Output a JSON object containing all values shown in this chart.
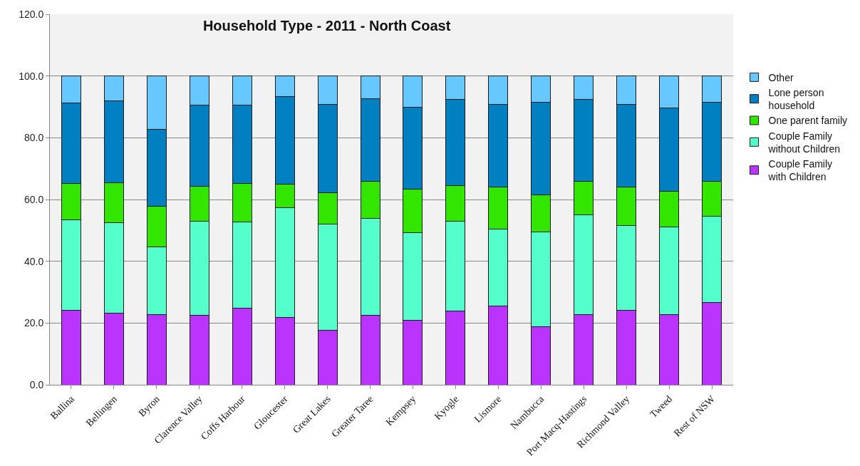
{
  "chart_data": {
    "type": "bar",
    "stacked": true,
    "title": "Household Type - 2011 - North Coast",
    "categories": [
      "Ballina",
      "Bellingen",
      "Byron",
      "Clarence Valley",
      "Coffs Harbour",
      "Gloucester",
      "Great Lakes",
      "Greater Taree",
      "Kempsey",
      "Kyogle",
      "Lismore",
      "Nambucca",
      "Port Macq-Hastings",
      "Richmond Valley",
      "Tweed",
      "Rest of NSW"
    ],
    "series": [
      {
        "name": "Couple Family with Children",
        "color": "#bb33ff",
        "values": [
          24.2,
          23.1,
          22.8,
          22.6,
          24.9,
          21.9,
          17.7,
          22.6,
          20.9,
          23.8,
          25.4,
          18.9,
          22.8,
          24.1,
          22.8,
          26.7
        ]
      },
      {
        "name": "Couple Family without Children",
        "color": "#55ffcc",
        "values": [
          29.3,
          29.4,
          21.8,
          30.4,
          27.9,
          35.4,
          34.4,
          31.4,
          28.3,
          29.1,
          25.0,
          30.7,
          32.3,
          27.5,
          28.3,
          27.8
        ]
      },
      {
        "name": "One parent family",
        "color": "#33e600",
        "values": [
          11.6,
          13.0,
          13.3,
          11.3,
          12.5,
          7.6,
          10.0,
          12.0,
          14.1,
          11.6,
          13.7,
          12.0,
          10.7,
          12.4,
          11.6,
          11.3
        ]
      },
      {
        "name": "Lone person household",
        "color": "#0080c0",
        "values": [
          26.1,
          26.4,
          24.9,
          26.2,
          25.2,
          28.4,
          28.6,
          26.6,
          26.7,
          27.9,
          26.6,
          29.8,
          26.6,
          26.7,
          26.9,
          25.6
        ]
      },
      {
        "name": "Other",
        "color": "#66c8ff",
        "values": [
          8.8,
          8.1,
          17.2,
          9.5,
          9.5,
          6.7,
          9.3,
          7.4,
          10.0,
          7.6,
          9.3,
          8.6,
          7.6,
          9.3,
          10.4,
          8.6
        ]
      }
    ],
    "ylim": [
      0,
      120
    ],
    "yticks": [
      {
        "value": 0,
        "label": "0.0"
      },
      {
        "value": 20,
        "label": "20.0"
      },
      {
        "value": 40,
        "label": "40.0"
      },
      {
        "value": 60,
        "label": "60.0"
      },
      {
        "value": 80,
        "label": "80.0"
      },
      {
        "value": 100,
        "label": "100.0"
      },
      {
        "value": 120,
        "label": "120.0"
      }
    ],
    "grid": "y",
    "legend": "right"
  }
}
